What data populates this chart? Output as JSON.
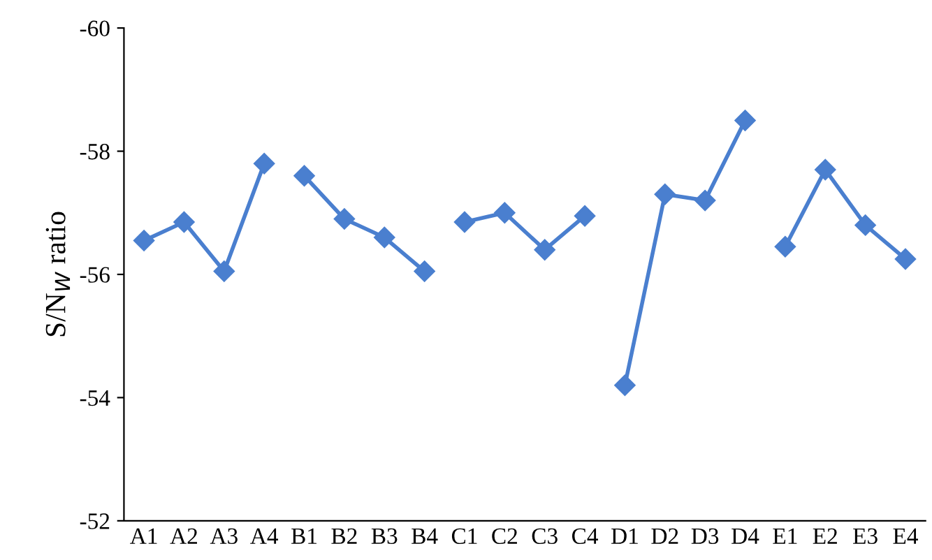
{
  "chart_data": {
    "type": "line",
    "ylabel": "S/N$_{W}$ ratio",
    "categories": [
      "A1",
      "A2",
      "A3",
      "A4",
      "B1",
      "B2",
      "B3",
      "B4",
      "C1",
      "C2",
      "C3",
      "C4",
      "D1",
      "D2",
      "D3",
      "D4",
      "E1",
      "E2",
      "E3",
      "E4"
    ],
    "series": [
      {
        "color": "#4a7fcf",
        "values": [
          -56.55,
          -56.85,
          -56.05,
          -57.8,
          null,
          null,
          null,
          null,
          null,
          null,
          null,
          null,
          null,
          null,
          null,
          null,
          null,
          null,
          null,
          null
        ]
      },
      {
        "color": "#4a7fcf",
        "values": [
          null,
          null,
          null,
          null,
          -57.6,
          -56.9,
          -56.6,
          -56.05,
          null,
          null,
          null,
          null,
          null,
          null,
          null,
          null,
          null,
          null,
          null,
          null
        ]
      },
      {
        "color": "#4a7fcf",
        "values": [
          null,
          null,
          null,
          null,
          null,
          null,
          null,
          null,
          -56.85,
          -57.0,
          -56.4,
          -56.95,
          null,
          null,
          null,
          null,
          null,
          null,
          null,
          null
        ]
      },
      {
        "color": "#4a7fcf",
        "values": [
          null,
          null,
          null,
          null,
          null,
          null,
          null,
          null,
          null,
          null,
          null,
          null,
          -54.2,
          -57.3,
          -57.2,
          -58.5,
          null,
          null,
          null,
          null
        ]
      },
      {
        "color": "#4a7fcf",
        "values": [
          null,
          null,
          null,
          null,
          null,
          null,
          null,
          null,
          null,
          null,
          null,
          null,
          null,
          null,
          null,
          null,
          -56.45,
          -57.7,
          -56.8,
          -56.25
        ]
      }
    ],
    "ylim": [
      -52,
      -60
    ],
    "yticks": [
      -52,
      -54,
      -56,
      -58,
      -60
    ],
    "marker": "diamond",
    "line_style": "solid",
    "grid": false,
    "legend": false
  }
}
